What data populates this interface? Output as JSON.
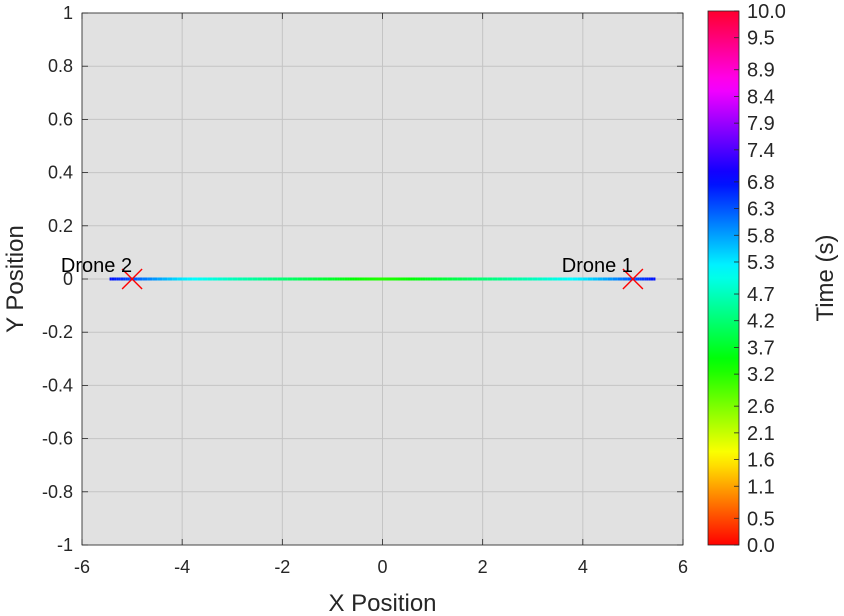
{
  "chart_data": {
    "type": "line",
    "xlabel": "X Position",
    "ylabel": "Y Position",
    "xlim": [
      -6,
      6
    ],
    "ylim": [
      -1,
      1
    ],
    "xticks": [
      -6,
      -4,
      -2,
      0,
      2,
      4,
      6
    ],
    "xtick_labels": [
      "-6",
      "-4",
      "-2",
      "0",
      "2",
      "4",
      "6"
    ],
    "yticks": [
      1,
      0.8,
      0.6,
      0.4,
      0.2,
      0,
      -0.2,
      -0.4,
      -0.6,
      -0.8,
      -1
    ],
    "ytick_labels": [
      "1",
      "0.8",
      "0.6",
      "0.4",
      "0.2",
      "0",
      "-0.2",
      "-0.4",
      "-0.6",
      "-0.8",
      "-1"
    ],
    "grid": true,
    "background_color": "#e1e1e1",
    "series": [
      {
        "x": [
          5.45,
          5.0,
          4.0,
          3.0,
          2.0,
          1.0,
          0.5,
          0.0
        ],
        "y": [
          0,
          0,
          0,
          0,
          0,
          0,
          0,
          0
        ],
        "t": [
          6.8,
          6.3,
          5.3,
          4.7,
          4.2,
          3.7,
          3.4,
          3.2
        ]
      },
      {
        "x": [
          -5.45,
          -5.0,
          -4.0,
          -3.0,
          -2.0,
          -1.0,
          -0.5,
          0.0
        ],
        "y": [
          0,
          0,
          0,
          0,
          0,
          0,
          0,
          0
        ],
        "t": [
          6.8,
          6.3,
          5.3,
          4.7,
          4.2,
          3.7,
          3.4,
          3.2
        ]
      }
    ],
    "markers": [
      {
        "label": "Drone 1",
        "x": 5,
        "y": 0,
        "symbol": "x",
        "color": "#ff0000"
      },
      {
        "label": "Drone 2",
        "x": -5,
        "y": 0,
        "symbol": "x",
        "color": "#ff0000"
      }
    ],
    "colorbar": {
      "label": "Time (s)",
      "range": [
        0,
        10
      ],
      "colormap": "hsv",
      "tick_values": [
        10.0,
        9.5,
        8.9,
        8.4,
        7.9,
        7.4,
        6.8,
        6.3,
        5.8,
        5.3,
        4.7,
        4.2,
        3.7,
        3.2,
        2.6,
        2.1,
        1.6,
        1.1,
        0.5,
        0.0
      ],
      "tick_labels": [
        "10.0",
        "9.5",
        "8.9",
        "8.4",
        "7.9",
        "7.4",
        "6.8",
        "6.3",
        "5.8",
        "5.3",
        "4.7",
        "4.2",
        "3.7",
        "3.2",
        "2.6",
        "2.1",
        "1.6",
        "1.1",
        "0.5",
        "0.0"
      ]
    }
  }
}
